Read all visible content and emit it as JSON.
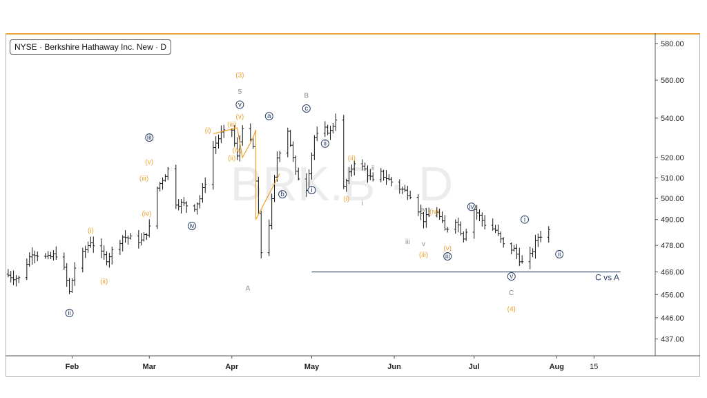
{
  "header": {
    "symbol_label": "NYSE · Berkshire Hathaway Inc. New · D"
  },
  "watermark": "BRK.B · D",
  "colors": {
    "orange": "#f0a030",
    "navy": "#2a3f66",
    "gray": "#8a8a8a",
    "bar": "#111111",
    "line": "#2a3f66"
  },
  "chart_data": {
    "type": "ohlc",
    "ylim": [
      430,
      585
    ],
    "y_scale": "log",
    "y_ticks": [
      {
        "value": 580,
        "label": "580.00"
      },
      {
        "value": 560,
        "label": "560.00"
      },
      {
        "value": 540,
        "label": "540.00"
      },
      {
        "value": 520,
        "label": "520.00"
      },
      {
        "value": 510,
        "label": "510.00"
      },
      {
        "value": 500,
        "label": "500.00"
      },
      {
        "value": 490,
        "label": "490.00"
      },
      {
        "value": 478,
        "label": "478.00"
      },
      {
        "value": 466,
        "label": "466.00"
      },
      {
        "value": 456,
        "label": "456.00"
      },
      {
        "value": 446,
        "label": "446.00"
      },
      {
        "value": 437,
        "label": "437.00"
      }
    ],
    "x_ticks": [
      {
        "date": "2024-02-01",
        "label": "Feb"
      },
      {
        "date": "2024-03-01",
        "label": "Mar"
      },
      {
        "date": "2024-04-01",
        "label": "Apr"
      },
      {
        "date": "2024-05-01",
        "label": "May"
      },
      {
        "date": "2024-06-01",
        "label": "Jun"
      },
      {
        "date": "2024-07-01",
        "label": "Jul"
      },
      {
        "date": "2024-08-01",
        "label": "Aug"
      },
      {
        "date": "2024-08-15",
        "label": "15"
      }
    ],
    "x_range": [
      "2024-01-07",
      "2024-09-07"
    ],
    "anchors": [
      {
        "date": "2024-01-07",
        "price": 465
      },
      {
        "date": "2024-01-12",
        "price": 463
      },
      {
        "date": "2024-01-17",
        "price": 475
      },
      {
        "date": "2024-01-23",
        "price": 472
      },
      {
        "date": "2024-01-26",
        "price": 474
      },
      {
        "date": "2024-01-29",
        "price": 467
      },
      {
        "date": "2024-01-31",
        "price": 457
      },
      {
        "date": "2024-02-02",
        "price": 468
      },
      {
        "date": "2024-02-08",
        "price": 480
      },
      {
        "date": "2024-02-12",
        "price": 474
      },
      {
        "date": "2024-02-14",
        "price": 472
      },
      {
        "date": "2024-02-20",
        "price": 482
      },
      {
        "date": "2024-02-27",
        "price": 480
      },
      {
        "date": "2024-03-01",
        "price": 486
      },
      {
        "date": "2024-03-04",
        "price": 505
      },
      {
        "date": "2024-03-08",
        "price": 514
      },
      {
        "date": "2024-03-11",
        "price": 498
      },
      {
        "date": "2024-03-18",
        "price": 496
      },
      {
        "date": "2024-03-20",
        "price": 500
      },
      {
        "date": "2024-03-22",
        "price": 508
      },
      {
        "date": "2024-03-25",
        "price": 525
      },
      {
        "date": "2024-03-28",
        "price": 532
      },
      {
        "date": "2024-04-01",
        "price": 534
      },
      {
        "date": "2024-04-03",
        "price": 520
      },
      {
        "date": "2024-04-05",
        "price": 536
      },
      {
        "date": "2024-04-09",
        "price": 525
      },
      {
        "date": "2024-04-12",
        "price": 475
      },
      {
        "date": "2024-04-15",
        "price": 488
      },
      {
        "date": "2024-04-18",
        "price": 520
      },
      {
        "date": "2024-04-22",
        "price": 534
      },
      {
        "date": "2024-04-25",
        "price": 512
      },
      {
        "date": "2024-04-29",
        "price": 505
      },
      {
        "date": "2024-05-02",
        "price": 530
      },
      {
        "date": "2024-05-06",
        "price": 534
      },
      {
        "date": "2024-05-08",
        "price": 533
      },
      {
        "date": "2024-05-10",
        "price": 540
      },
      {
        "date": "2024-05-13",
        "price": 505
      },
      {
        "date": "2024-05-17",
        "price": 518
      },
      {
        "date": "2024-05-21",
        "price": 514
      },
      {
        "date": "2024-05-24",
        "price": 508
      },
      {
        "date": "2024-05-27",
        "price": 512
      },
      {
        "date": "2024-06-03",
        "price": 505
      },
      {
        "date": "2024-06-07",
        "price": 502
      },
      {
        "date": "2024-06-12",
        "price": 490
      },
      {
        "date": "2024-06-17",
        "price": 494
      },
      {
        "date": "2024-06-20",
        "price": 485
      },
      {
        "date": "2024-06-24",
        "price": 490
      },
      {
        "date": "2024-06-27",
        "price": 482
      },
      {
        "date": "2024-07-01",
        "price": 495
      },
      {
        "date": "2024-07-05",
        "price": 488
      },
      {
        "date": "2024-07-09",
        "price": 485
      },
      {
        "date": "2024-07-12",
        "price": 478
      },
      {
        "date": "2024-07-16",
        "price": 476
      },
      {
        "date": "2024-07-19",
        "price": 470
      },
      {
        "date": "2024-07-22",
        "price": 473
      },
      {
        "date": "2024-07-25",
        "price": 482
      },
      {
        "date": "2024-07-29",
        "price": 485
      }
    ],
    "orange_path": [
      {
        "date": "2024-03-25",
        "price": 532
      },
      {
        "date": "2024-04-03",
        "price": 535
      },
      {
        "date": "2024-04-05",
        "price": 520
      },
      {
        "date": "2024-04-09",
        "price": 530
      },
      {
        "date": "2024-04-10",
        "price": 534
      },
      {
        "date": "2024-04-10",
        "price": 490
      },
      {
        "date": "2024-04-19",
        "price": 512
      }
    ],
    "level_line": {
      "from": "2024-05-01",
      "to": "2024-08-25",
      "price": 466,
      "label": "C vs A"
    },
    "annotations": [
      {
        "text": "ii",
        "date": "2024-01-31",
        "price": 448,
        "style": "navy-circle"
      },
      {
        "text": "(i)",
        "date": "2024-02-08",
        "price": 485,
        "style": "orange"
      },
      {
        "text": "(ii)",
        "date": "2024-02-13",
        "price": 462,
        "style": "orange"
      },
      {
        "text": "iii",
        "date": "2024-03-01",
        "price": 530,
        "style": "navy-circle"
      },
      {
        "text": "(v)",
        "date": "2024-03-01",
        "price": 518,
        "style": "orange"
      },
      {
        "text": "(iii)",
        "date": "2024-02-28",
        "price": 510,
        "style": "orange"
      },
      {
        "text": "(iv)",
        "date": "2024-02-29",
        "price": 493,
        "style": "orange"
      },
      {
        "text": "iv",
        "date": "2024-03-17",
        "price": 487,
        "style": "navy-circle"
      },
      {
        "text": "(i)",
        "date": "2024-03-23",
        "price": 534,
        "style": "orange"
      },
      {
        "text": "(ii)",
        "date": "2024-04-01",
        "price": 520,
        "style": "orange"
      },
      {
        "text": "(iii)",
        "date": "2024-04-01",
        "price": 537,
        "style": "orange"
      },
      {
        "text": "(iv)",
        "date": "2024-04-03",
        "price": 524,
        "style": "orange"
      },
      {
        "text": "(v)",
        "date": "2024-04-04",
        "price": 541,
        "style": "orange"
      },
      {
        "text": "v",
        "date": "2024-04-04",
        "price": 547,
        "style": "navy-circle"
      },
      {
        "text": "5",
        "date": "2024-04-04",
        "price": 554,
        "style": "gray"
      },
      {
        "text": "(3)",
        "date": "2024-04-04",
        "price": 563,
        "style": "orange"
      },
      {
        "text": "A",
        "date": "2024-04-07",
        "price": 459,
        "style": "gray"
      },
      {
        "text": "a",
        "date": "2024-04-15",
        "price": 541,
        "style": "navy-circle"
      },
      {
        "text": "b",
        "date": "2024-04-20",
        "price": 502,
        "style": "navy-circle"
      },
      {
        "text": "B",
        "date": "2024-04-29",
        "price": 552,
        "style": "gray"
      },
      {
        "text": "c",
        "date": "2024-04-29",
        "price": 545,
        "style": "navy-circle"
      },
      {
        "text": "i",
        "date": "2024-05-01",
        "price": 504,
        "style": "navy-circle"
      },
      {
        "text": "ii",
        "date": "2024-05-06",
        "price": 527,
        "style": "navy-circle"
      },
      {
        "text": "(ii)",
        "date": "2024-05-16",
        "price": 520,
        "style": "orange"
      },
      {
        "text": "ii",
        "date": "2024-05-24",
        "price": 515,
        "style": "gray"
      },
      {
        "text": "(i)",
        "date": "2024-05-14",
        "price": 500,
        "style": "orange"
      },
      {
        "text": "i",
        "date": "2024-05-20",
        "price": 498,
        "style": "gray"
      },
      {
        "text": "iii",
        "date": "2024-06-06",
        "price": 480,
        "style": "gray"
      },
      {
        "text": "iv",
        "date": "2024-06-12",
        "price": 495,
        "style": "gray"
      },
      {
        "text": "(iv)",
        "date": "2024-06-16",
        "price": 494,
        "style": "orange"
      },
      {
        "text": "v",
        "date": "2024-06-12",
        "price": 479,
        "style": "gray"
      },
      {
        "text": "(iii)",
        "date": "2024-06-12",
        "price": 474,
        "style": "orange"
      },
      {
        "text": "(v)",
        "date": "2024-06-21",
        "price": 477,
        "style": "orange"
      },
      {
        "text": "iii",
        "date": "2024-06-21",
        "price": 473,
        "style": "navy-circle"
      },
      {
        "text": "iv",
        "date": "2024-06-30",
        "price": 496,
        "style": "navy-circle"
      },
      {
        "text": "v",
        "date": "2024-07-15",
        "price": 464,
        "style": "navy-circle"
      },
      {
        "text": "C",
        "date": "2024-07-15",
        "price": 457,
        "style": "gray"
      },
      {
        "text": "(4)",
        "date": "2024-07-15",
        "price": 450,
        "style": "orange"
      },
      {
        "text": "i",
        "date": "2024-07-20",
        "price": 490,
        "style": "navy-circle"
      },
      {
        "text": "ii",
        "date": "2024-08-02",
        "price": 474,
        "style": "navy-circle"
      }
    ]
  }
}
